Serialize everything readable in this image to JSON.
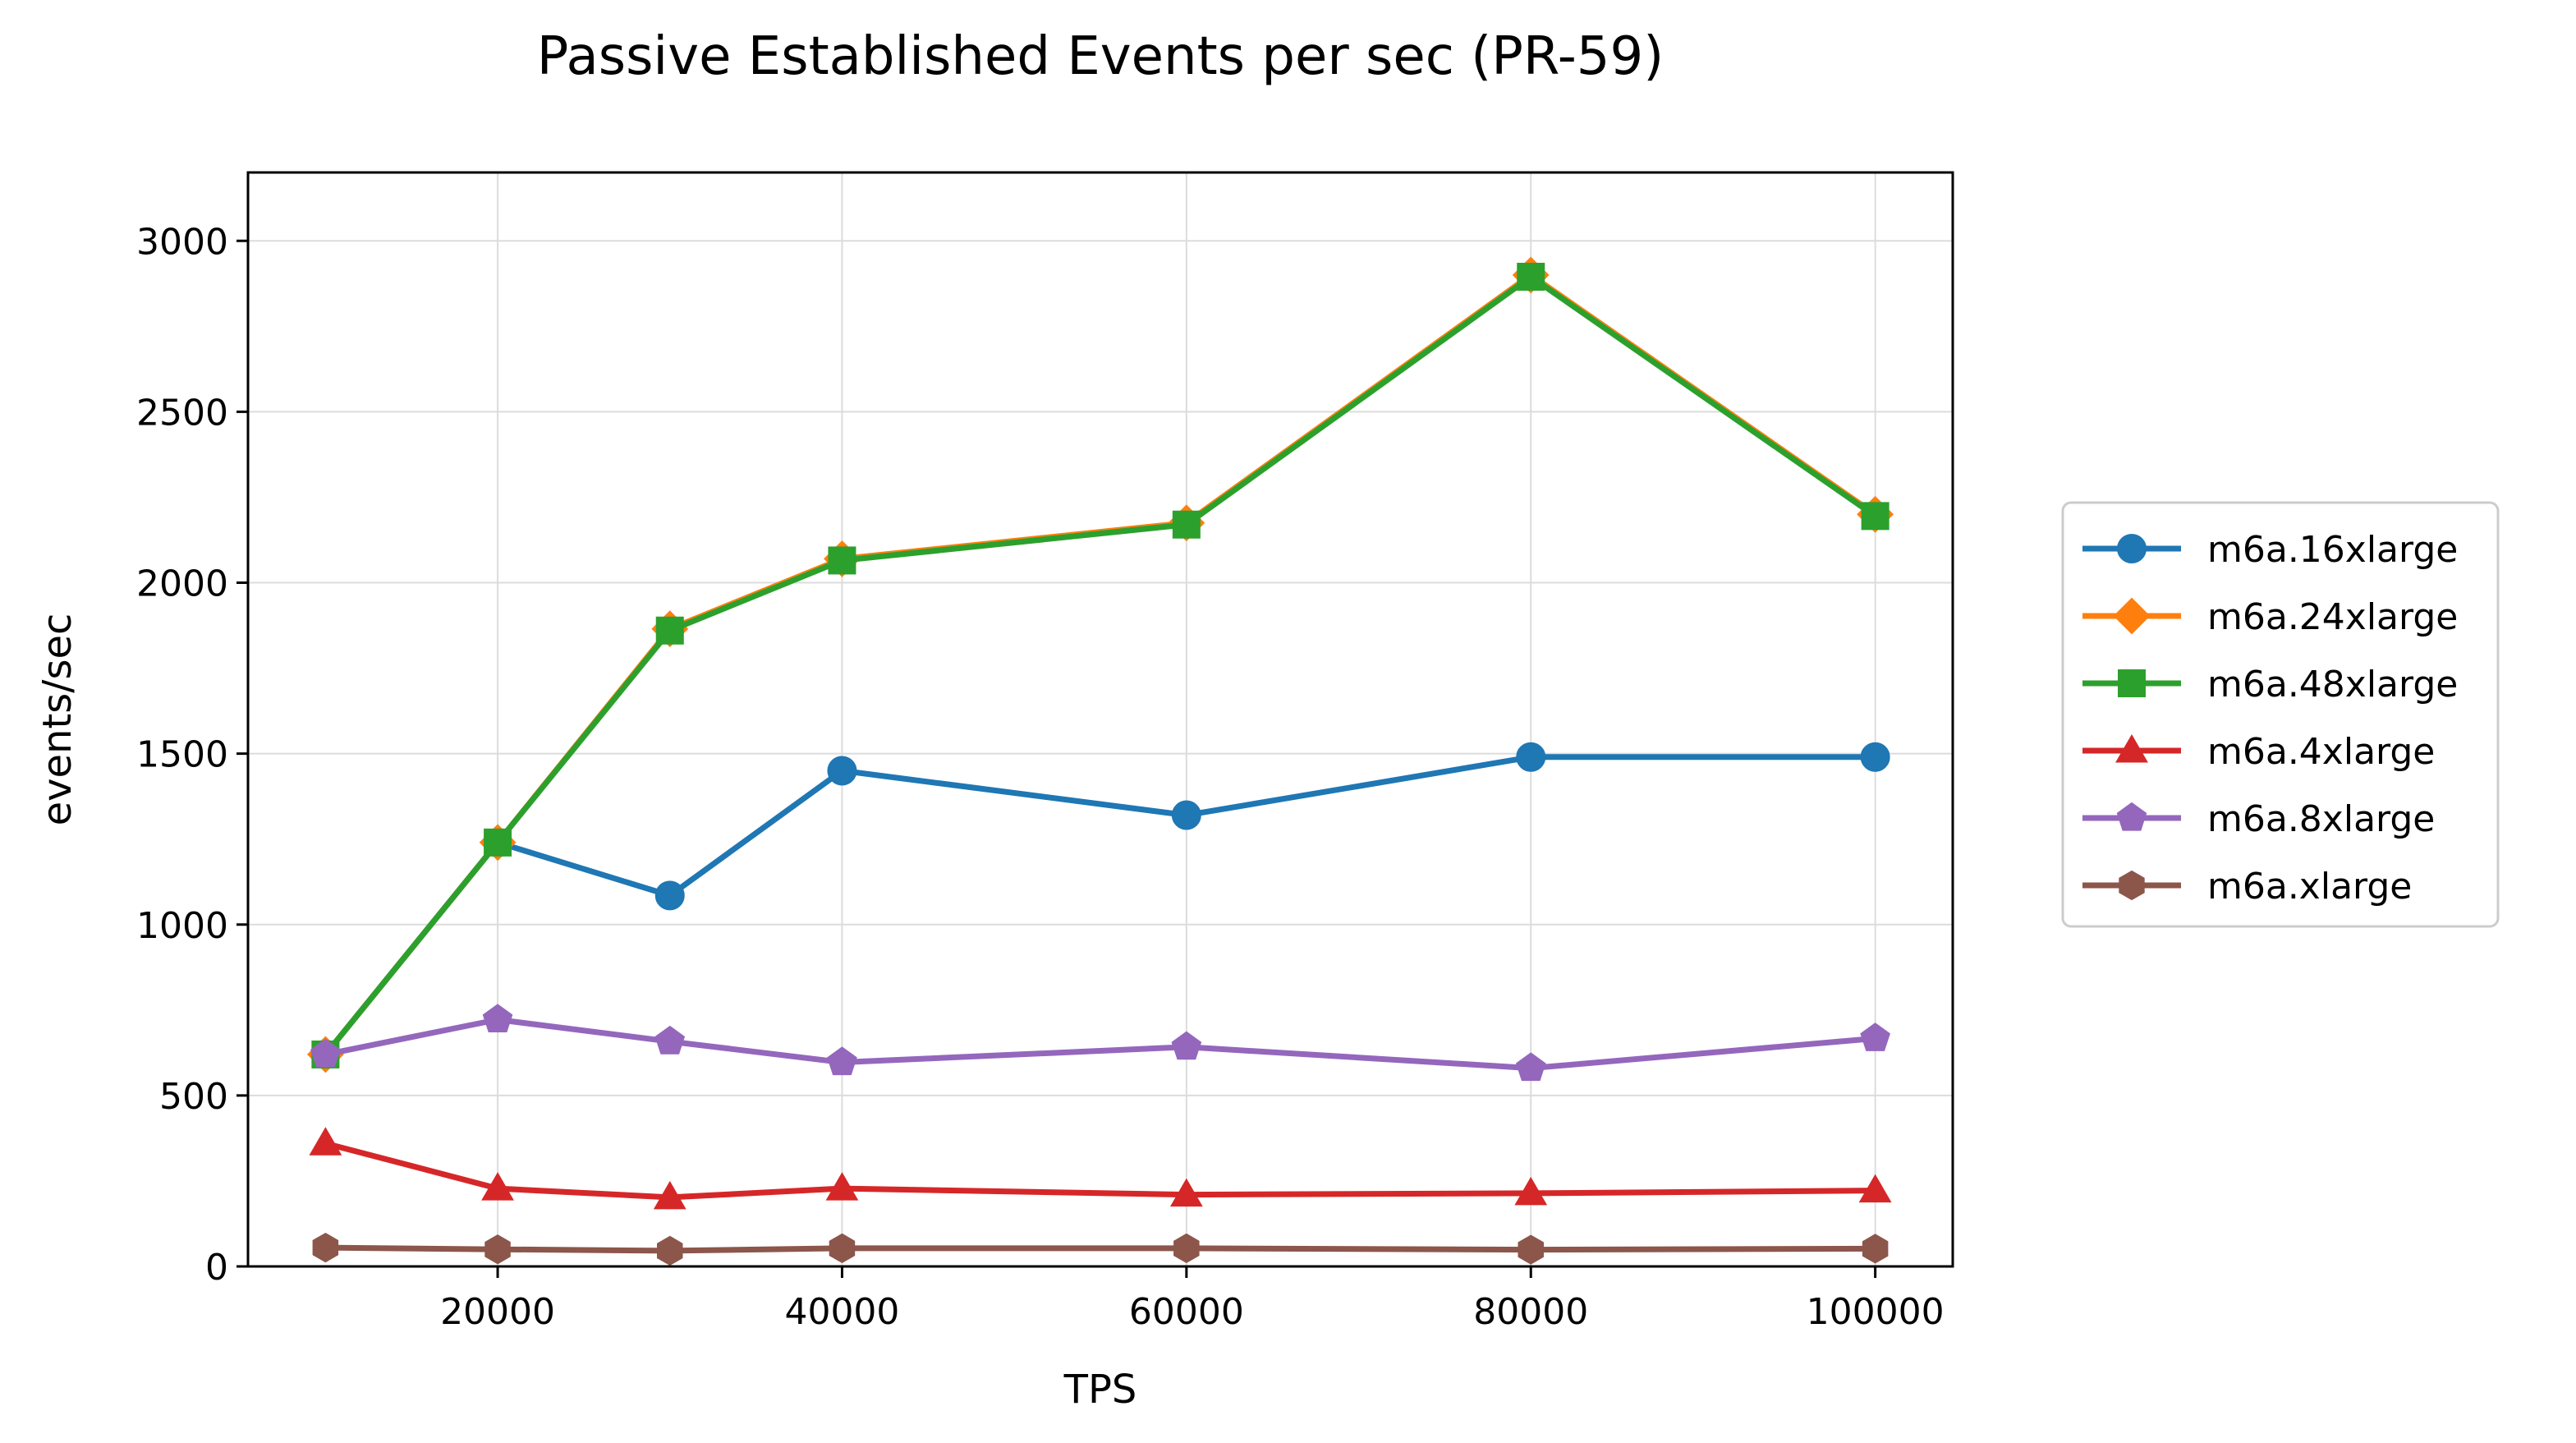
{
  "chart_data": {
    "type": "line",
    "title": "Passive Established Events per sec (PR-59)",
    "xlabel": "TPS",
    "ylabel": "events/sec",
    "x": [
      10000,
      20000,
      30000,
      40000,
      60000,
      80000,
      100000
    ],
    "xlim": [
      5500,
      104500
    ],
    "ylim": [
      0,
      3200
    ],
    "xticks": [
      20000,
      40000,
      60000,
      80000,
      100000
    ],
    "yticks": [
      0,
      500,
      1000,
      1500,
      2000,
      2500,
      3000
    ],
    "grid": true,
    "legend_position": "right",
    "series": [
      {
        "name": "m6a.16xlarge",
        "color": "#1f77b4",
        "marker": "circle",
        "values": [
          620,
          1240,
          1085,
          1450,
          1320,
          1490,
          1490
        ]
      },
      {
        "name": "m6a.24xlarge",
        "color": "#ff7f0e",
        "marker": "diamond",
        "values": [
          620,
          1240,
          1865,
          2070,
          2175,
          2900,
          2200
        ]
      },
      {
        "name": "m6a.48xlarge",
        "color": "#2ca02c",
        "marker": "square",
        "values": [
          620,
          1240,
          1860,
          2065,
          2170,
          2895,
          2195
        ]
      },
      {
        "name": "m6a.4xlarge",
        "color": "#d62728",
        "marker": "triangle",
        "values": [
          360,
          228,
          202,
          228,
          210,
          214,
          222
        ]
      },
      {
        "name": "m6a.8xlarge",
        "color": "#9467bd",
        "marker": "pentagon",
        "values": [
          620,
          722,
          658,
          597,
          642,
          580,
          667
        ]
      },
      {
        "name": "m6a.xlarge",
        "color": "#8c564b",
        "marker": "hexagon",
        "values": [
          55,
          50,
          46,
          53,
          53,
          49,
          52
        ]
      }
    ]
  }
}
